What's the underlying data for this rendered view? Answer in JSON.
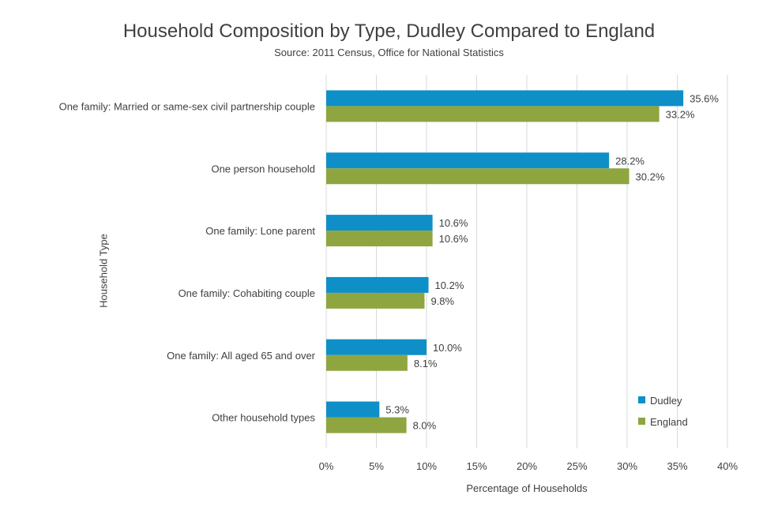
{
  "colors": {
    "Dudley": "#0e8fc7",
    "England": "#8fa540",
    "grid": "#d9d9d9",
    "text": "#404040"
  },
  "chart_data": {
    "type": "bar",
    "orientation": "horizontal",
    "title": "Household Composition by Type, Dudley Compared to England",
    "subtitle": "Source: 2011 Census, Office for National Statistics",
    "xlabel": "Percentage of Households",
    "ylabel": "Household Type",
    "xlim": [
      0,
      40
    ],
    "xticks": [
      "0%",
      "5%",
      "10%",
      "15%",
      "20%",
      "25%",
      "30%",
      "35%",
      "40%"
    ],
    "grid": true,
    "legend_position": "bottom-right",
    "categories": [
      "One family: Married or same-sex civil partnership couple",
      "One person household",
      "One family: Lone parent",
      "One family: Cohabiting couple",
      "One family: All aged 65 and over",
      "Other household types"
    ],
    "series": [
      {
        "name": "Dudley",
        "values": [
          35.6,
          28.2,
          10.6,
          10.2,
          10.0,
          5.3
        ],
        "labels": [
          "35.6%",
          "28.2%",
          "10.6%",
          "10.2%",
          "10.0%",
          "5.3%"
        ]
      },
      {
        "name": "England",
        "values": [
          33.2,
          30.2,
          10.6,
          9.8,
          8.1,
          8.0
        ],
        "labels": [
          "33.2%",
          "30.2%",
          "10.6%",
          "9.8%",
          "8.1%",
          "8.0%"
        ]
      }
    ]
  }
}
